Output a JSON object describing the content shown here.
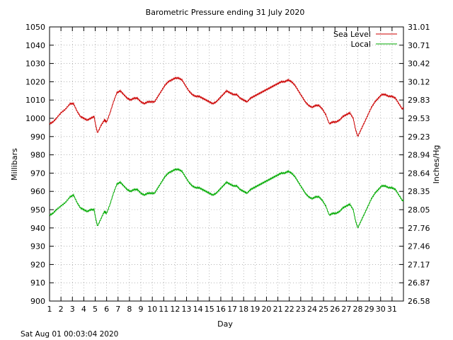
{
  "chart_data": {
    "type": "line",
    "title": "Barometric Pressure ending 31 July 2020",
    "xlabel": "Day",
    "ylabel": "Millibars",
    "y2label": "Inches/Hg",
    "timestamp": "Sat Aug 01 00:03:04 2020",
    "xlim": [
      1,
      32
    ],
    "ylim": [
      900,
      1050
    ],
    "x_ticks": [
      "1",
      "2",
      "3",
      "4",
      "5",
      "6",
      "7",
      "8",
      "9",
      "10",
      "11",
      "12",
      "13",
      "14",
      "15",
      "16",
      "17",
      "18",
      "19",
      "20",
      "21",
      "22",
      "23",
      "24",
      "25",
      "26",
      "27",
      "28",
      "29",
      "30",
      "31"
    ],
    "y_ticks": [
      "900",
      "910",
      "920",
      "930",
      "940",
      "950",
      "960",
      "970",
      "980",
      "990",
      "1000",
      "1010",
      "1020",
      "1030",
      "1040",
      "1050"
    ],
    "y2_ticks": [
      "26.58",
      "26.87",
      "27.17",
      "27.46",
      "27.76",
      "28.05",
      "28.35",
      "28.64",
      "28.94",
      "29.23",
      "29.53",
      "29.83",
      "30.12",
      "30.42",
      "30.71",
      "31.01"
    ],
    "grid": true,
    "legend_position": "top-right",
    "series": [
      {
        "name": "Sea Level",
        "color": "#cc0000",
        "x": [
          1,
          1.3,
          1.6,
          2,
          2.4,
          2.8,
          3.1,
          3.4,
          3.7,
          4,
          4.3,
          4.6,
          4.9,
          5.05,
          5.2,
          5.5,
          5.8,
          6,
          6.3,
          6.6,
          6.9,
          7.2,
          7.5,
          7.8,
          8.1,
          8.4,
          8.7,
          9,
          9.3,
          9.6,
          9.9,
          10.2,
          10.5,
          10.8,
          11.1,
          11.4,
          11.7,
          12,
          12.3,
          12.6,
          12.9,
          13.2,
          13.5,
          13.8,
          14.1,
          14.4,
          14.7,
          15,
          15.3,
          15.6,
          15.9,
          16.2,
          16.5,
          16.8,
          17.1,
          17.4,
          17.7,
          18,
          18.3,
          18.6,
          18.9,
          19.2,
          19.5,
          19.8,
          20.1,
          20.4,
          20.7,
          21,
          21.3,
          21.6,
          21.9,
          22.2,
          22.5,
          22.8,
          23.1,
          23.4,
          23.7,
          24,
          24.3,
          24.6,
          24.9,
          25.2,
          25.5,
          25.8,
          26.1,
          26.4,
          26.7,
          27,
          27.3,
          27.6,
          27.8,
          28,
          28.3,
          28.6,
          28.9,
          29.2,
          29.5,
          29.8,
          30.1,
          30.4,
          30.7,
          31,
          31.3,
          31.6,
          31.9
        ],
        "y": [
          997,
          998,
          1000,
          1003,
          1005,
          1008,
          1008,
          1004,
          1001,
          1000,
          999,
          1000,
          1001,
          996,
          992,
          996,
          999,
          998,
          1003,
          1009,
          1014,
          1015,
          1013,
          1011,
          1010,
          1011,
          1011,
          1009,
          1008,
          1009,
          1009,
          1009,
          1012,
          1015,
          1018,
          1020,
          1021,
          1022,
          1022,
          1021,
          1018,
          1015,
          1013,
          1012,
          1012,
          1011,
          1010,
          1009,
          1008,
          1009,
          1011,
          1013,
          1015,
          1014,
          1013,
          1013,
          1011,
          1010,
          1009,
          1011,
          1012,
          1013,
          1014,
          1015,
          1016,
          1017,
          1018,
          1019,
          1020,
          1020,
          1021,
          1020,
          1018,
          1015,
          1012,
          1009,
          1007,
          1006,
          1007,
          1007,
          1005,
          1002,
          997,
          998,
          998,
          999,
          1001,
          1002,
          1003,
          1000,
          994,
          990,
          994,
          998,
          1002,
          1006,
          1009,
          1011,
          1013,
          1013,
          1012,
          1012,
          1011,
          1008,
          1005
        ],
        "x_end": 32,
        "y_end": 1006
      },
      {
        "name": "Local",
        "color": "#00aa00",
        "x": [
          1,
          1.3,
          1.6,
          2,
          2.4,
          2.8,
          3.1,
          3.4,
          3.7,
          4,
          4.3,
          4.6,
          4.9,
          5.05,
          5.2,
          5.5,
          5.8,
          6,
          6.3,
          6.6,
          6.9,
          7.2,
          7.5,
          7.8,
          8.1,
          8.4,
          8.7,
          9,
          9.3,
          9.6,
          9.9,
          10.2,
          10.5,
          10.8,
          11.1,
          11.4,
          11.7,
          12,
          12.3,
          12.6,
          12.9,
          13.2,
          13.5,
          13.8,
          14.1,
          14.4,
          14.7,
          15,
          15.3,
          15.6,
          15.9,
          16.2,
          16.5,
          16.8,
          17.1,
          17.4,
          17.7,
          18,
          18.3,
          18.6,
          18.9,
          19.2,
          19.5,
          19.8,
          20.1,
          20.4,
          20.7,
          21,
          21.3,
          21.6,
          21.9,
          22.2,
          22.5,
          22.8,
          23.1,
          23.4,
          23.7,
          24,
          24.3,
          24.6,
          24.9,
          25.2,
          25.5,
          25.8,
          26.1,
          26.4,
          26.7,
          27,
          27.3,
          27.6,
          27.8,
          28,
          28.3,
          28.6,
          28.9,
          29.2,
          29.5,
          29.8,
          30.1,
          30.4,
          30.7,
          31,
          31.3,
          31.6,
          31.9
        ],
        "y": [
          947,
          948,
          950,
          952,
          954,
          957,
          958,
          954,
          951,
          950,
          949,
          950,
          950,
          945,
          941,
          945,
          949,
          948,
          953,
          959,
          964,
          965,
          963,
          961,
          960,
          961,
          961,
          959,
          958,
          959,
          959,
          959,
          962,
          965,
          968,
          970,
          971,
          972,
          972,
          971,
          968,
          965,
          963,
          962,
          962,
          961,
          960,
          959,
          958,
          959,
          961,
          963,
          965,
          964,
          963,
          963,
          961,
          960,
          959,
          961,
          962,
          963,
          964,
          965,
          966,
          967,
          968,
          969,
          970,
          970,
          971,
          970,
          968,
          965,
          962,
          959,
          957,
          956,
          957,
          957,
          955,
          952,
          947,
          948,
          948,
          949,
          951,
          952,
          953,
          950,
          944,
          940,
          944,
          948,
          952,
          956,
          959,
          961,
          963,
          963,
          962,
          962,
          961,
          958,
          955
        ],
        "x_end": 32,
        "y_end": 955
      }
    ]
  }
}
